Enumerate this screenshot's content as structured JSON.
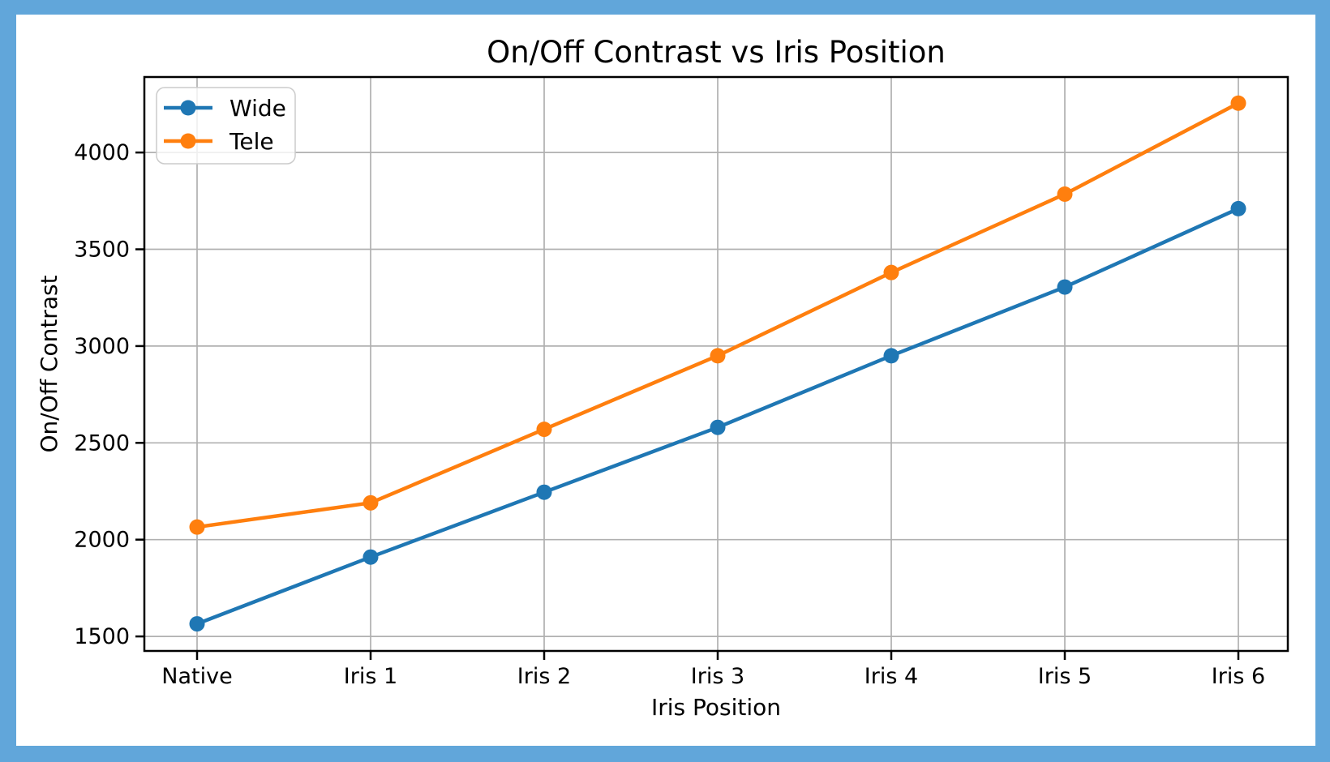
{
  "window": {
    "frame_color": "#61a6da",
    "background": "#ffffff"
  },
  "chart_data": {
    "type": "line",
    "title": "On/Off Contrast vs Iris Position",
    "xlabel": "Iris Position",
    "ylabel": "On/Off Contrast",
    "categories": [
      "Native",
      "Iris 1",
      "Iris 2",
      "Iris 3",
      "Iris 4",
      "Iris 5",
      "Iris 6"
    ],
    "series": [
      {
        "name": "Wide",
        "color": "#1f77b4",
        "values": [
          1565,
          1910,
          2245,
          2580,
          2950,
          3305,
          3710
        ]
      },
      {
        "name": "Tele",
        "color": "#ff7f0e",
        "values": [
          2065,
          2190,
          2570,
          2950,
          3380,
          3785,
          4255
        ]
      }
    ],
    "yticks": [
      1500,
      2000,
      2500,
      3000,
      3500,
      4000
    ],
    "ylim": [
      1425,
      4390
    ],
    "grid": true,
    "grid_color": "#b0b0b0",
    "axis_color": "#000000",
    "legend": {
      "position": "upper left",
      "border_color": "#cccccc"
    },
    "marker": "circle"
  }
}
